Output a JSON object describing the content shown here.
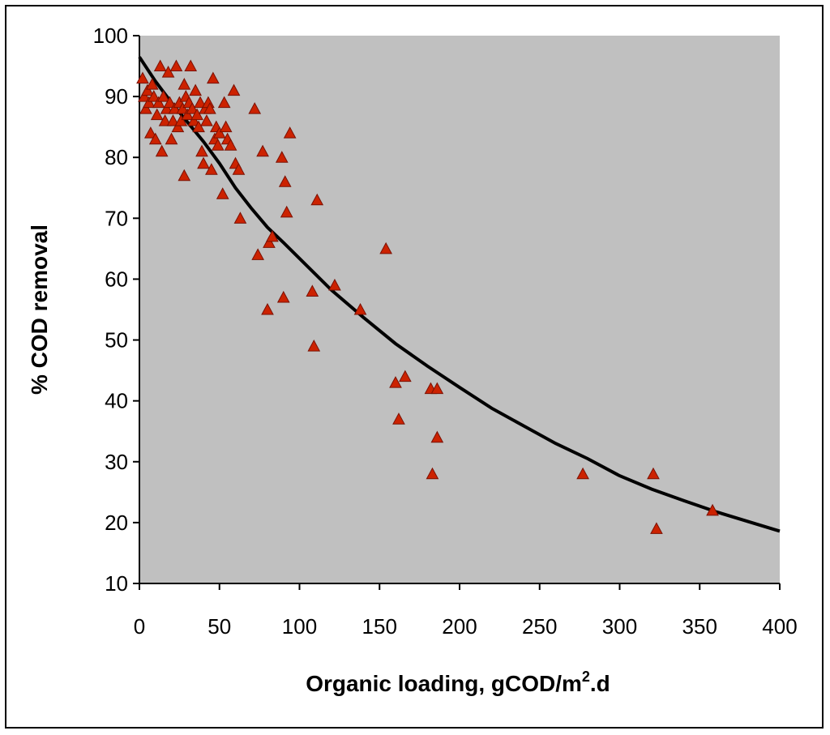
{
  "chart_data": {
    "type": "scatter",
    "title": "",
    "xlabel": "Organic loading, gCOD/m",
    "xlabel_superscript": "2",
    "xlabel_suffix": ".d",
    "ylabel": "% COD removal",
    "xlim": [
      0,
      400
    ],
    "ylim": [
      10,
      100
    ],
    "xticks": [
      0,
      50,
      100,
      150,
      200,
      250,
      300,
      350,
      400
    ],
    "yticks": [
      10,
      20,
      30,
      40,
      50,
      60,
      70,
      80,
      90,
      100
    ],
    "grid": false,
    "legend": "none",
    "colors": {
      "plot_background": "#c0c0c0",
      "marker_fill": "#cc2200",
      "marker_edge": "#7a1000",
      "trend_line": "#000000"
    },
    "series": [
      {
        "marker": "triangle",
        "points": [
          [
            2,
            93
          ],
          [
            3,
            90
          ],
          [
            4,
            88
          ],
          [
            5,
            91
          ],
          [
            6,
            89
          ],
          [
            7,
            84
          ],
          [
            8,
            92
          ],
          [
            9,
            90
          ],
          [
            10,
            83
          ],
          [
            11,
            87
          ],
          [
            12,
            89
          ],
          [
            13,
            95
          ],
          [
            14,
            81
          ],
          [
            15,
            90
          ],
          [
            16,
            86
          ],
          [
            17,
            88
          ],
          [
            18,
            94
          ],
          [
            19,
            89
          ],
          [
            20,
            83
          ],
          [
            21,
            86
          ],
          [
            22,
            88
          ],
          [
            23,
            95
          ],
          [
            24,
            85
          ],
          [
            25,
            89
          ],
          [
            26,
            86
          ],
          [
            27,
            88
          ],
          [
            28,
            92
          ],
          [
            28,
            77
          ],
          [
            29,
            90
          ],
          [
            30,
            87
          ],
          [
            31,
            89
          ],
          [
            32,
            95
          ],
          [
            33,
            88
          ],
          [
            34,
            86
          ],
          [
            35,
            91
          ],
          [
            36,
            87
          ],
          [
            37,
            85
          ],
          [
            38,
            89
          ],
          [
            39,
            81
          ],
          [
            40,
            79
          ],
          [
            41,
            88
          ],
          [
            42,
            86
          ],
          [
            43,
            89
          ],
          [
            44,
            88
          ],
          [
            45,
            78
          ],
          [
            46,
            93
          ],
          [
            47,
            83
          ],
          [
            48,
            85
          ],
          [
            49,
            82
          ],
          [
            50,
            84
          ],
          [
            52,
            74
          ],
          [
            53,
            89
          ],
          [
            54,
            85
          ],
          [
            55,
            83
          ],
          [
            57,
            82
          ],
          [
            59,
            91
          ],
          [
            60,
            79
          ],
          [
            62,
            78
          ],
          [
            63,
            70
          ],
          [
            72,
            88
          ],
          [
            74,
            64
          ],
          [
            77,
            81
          ],
          [
            80,
            55
          ],
          [
            81,
            66
          ],
          [
            83,
            67
          ],
          [
            89,
            80
          ],
          [
            90,
            57
          ],
          [
            91,
            76
          ],
          [
            92,
            71
          ],
          [
            94,
            84
          ],
          [
            108,
            58
          ],
          [
            109,
            49
          ],
          [
            111,
            73
          ],
          [
            122,
            59
          ],
          [
            138,
            55
          ],
          [
            154,
            65
          ],
          [
            160,
            43
          ],
          [
            162,
            37
          ],
          [
            166,
            44
          ],
          [
            182,
            42
          ],
          [
            183,
            28
          ],
          [
            186,
            42
          ],
          [
            186,
            34
          ],
          [
            277,
            28
          ],
          [
            321,
            28
          ],
          [
            323,
            19
          ],
          [
            358,
            22
          ]
        ]
      },
      {
        "name": "",
        "type": "line",
        "x": [
          0,
          10,
          20,
          30,
          40,
          50,
          60,
          70,
          80,
          90,
          100,
          120,
          140,
          160,
          180,
          200,
          220,
          240,
          260,
          280,
          300,
          320,
          340,
          360,
          380,
          400
        ],
        "y": [
          96.5,
          92.5,
          89.0,
          85.8,
          82.6,
          79.0,
          75.0,
          71.6,
          68.5,
          66.0,
          63.4,
          58.2,
          53.7,
          49.4,
          45.7,
          42.2,
          38.8,
          35.9,
          33.0,
          30.5,
          27.7,
          25.5,
          23.6,
          21.8,
          20.2,
          18.6
        ]
      }
    ]
  }
}
